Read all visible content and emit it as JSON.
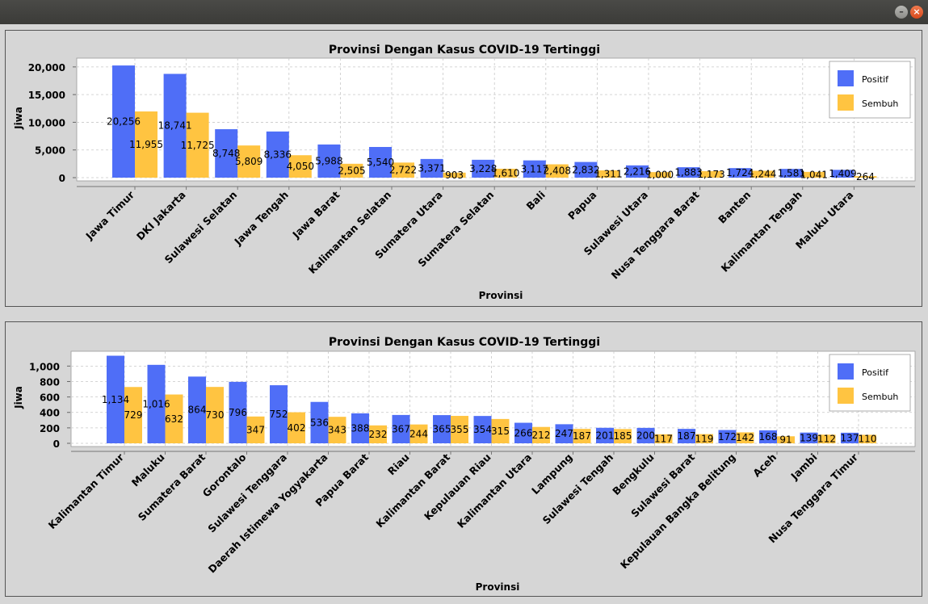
{
  "window": {
    "minimize_icon": "minimize-icon",
    "close_icon": "close-icon"
  },
  "colors": {
    "positif": "#4f6ef7",
    "sembuh": "#ffc441",
    "plot_bg": "#ffffff",
    "panel_bg": "#d6d6d6"
  },
  "chart_data": [
    {
      "type": "bar",
      "title": "Provinsi Dengan Kasus COVID-19 Tertinggi",
      "xlabel": "Provinsi",
      "ylabel": "Jiwa",
      "ylim": [
        0,
        21000
      ],
      "yticks": [
        0,
        5000,
        10000,
        15000,
        20000
      ],
      "ytick_labels": [
        "0",
        "5,000",
        "10,000",
        "15,000",
        "20,000"
      ],
      "grid": true,
      "legend_position": "top-right",
      "categories": [
        "Jawa Timur",
        "DKI Jakarta",
        "Sulawesi Selatan",
        "Jawa Tengah",
        "Jawa Barat",
        "Kalimantan Selatan",
        "Sumatera Utara",
        "Sumatera Selatan",
        "Bali",
        "Papua",
        "Sulawesi Utara",
        "Nusa Tenggara Barat",
        "Banten",
        "Kalimantan Tengah",
        "Maluku Utara"
      ],
      "series": [
        {
          "name": "Positif",
          "values": [
            20256,
            18741,
            8748,
            8336,
            5988,
            5540,
            3371,
            3228,
            3117,
            2832,
            2216,
            1883,
            1724,
            1581,
            1409
          ],
          "labels": [
            "20,256",
            "18,741",
            "8,748",
            "8,336",
            "5,988",
            "5,540",
            "3,371",
            "3,228",
            "3,117",
            "2,832",
            "2,216",
            "1,883",
            "1,724",
            "1,581",
            "1,409"
          ]
        },
        {
          "name": "Sembuh",
          "values": [
            11955,
            11725,
            5809,
            4050,
            2505,
            2722,
            903,
            1610,
            2408,
            1311,
            1000,
            1173,
            1244,
            1041,
            264
          ],
          "labels": [
            "11,955",
            "11,725",
            "5,809",
            "4,050",
            "2,505",
            "2,722",
            "903",
            "1,610",
            "2,408",
            "1,311",
            "1,000",
            "1,173",
            "1,244",
            "1,041",
            "264"
          ]
        }
      ]
    },
    {
      "type": "bar",
      "title": "Provinsi Dengan Kasus COVID-19 Tertinggi",
      "xlabel": "Provinsi",
      "ylabel": "Jiwa",
      "ylim": [
        0,
        1150
      ],
      "yticks": [
        0,
        200,
        400,
        600,
        800,
        1000
      ],
      "ytick_labels": [
        "0",
        "200",
        "400",
        "600",
        "800",
        "1,000"
      ],
      "grid": true,
      "legend_position": "top-right",
      "categories": [
        "Kalimantan Timur",
        "Maluku",
        "Sumatera Barat",
        "Gorontalo",
        "Sulawesi Tenggara",
        "Daerah Istimewa Yogyakarta",
        "Papua Barat",
        "Riau",
        "Kalimantan Barat",
        "Kepulauan Riau",
        "Kalimantan Utara",
        "Lampung",
        "Sulawesi Tengah",
        "Bengkulu",
        "Sulawesi Barat",
        "Kepulauan Bangka Belitung",
        "Aceh",
        "Jambi",
        "Nusa Tenggara Timur"
      ],
      "series": [
        {
          "name": "Positif",
          "values": [
            1134,
            1016,
            864,
            796,
            752,
            536,
            388,
            367,
            365,
            354,
            266,
            247,
            201,
            200,
            187,
            172,
            168,
            139,
            137
          ],
          "labels": [
            "1,134",
            "1,016",
            "864",
            "796",
            "752",
            "536",
            "388",
            "367",
            "365",
            "354",
            "266",
            "247",
            "201",
            "200",
            "187",
            "172",
            "168",
            "139",
            "137"
          ]
        },
        {
          "name": "Sembuh",
          "values": [
            729,
            632,
            730,
            347,
            402,
            343,
            232,
            244,
            355,
            315,
            212,
            187,
            185,
            117,
            119,
            142,
            91,
            112,
            110
          ],
          "labels": [
            "729",
            "632",
            "730",
            "347",
            "402",
            "343",
            "232",
            "244",
            "355",
            "315",
            "212",
            "187",
            "185",
            "117",
            "119",
            "142",
            "91",
            "112",
            "110"
          ]
        }
      ]
    }
  ]
}
